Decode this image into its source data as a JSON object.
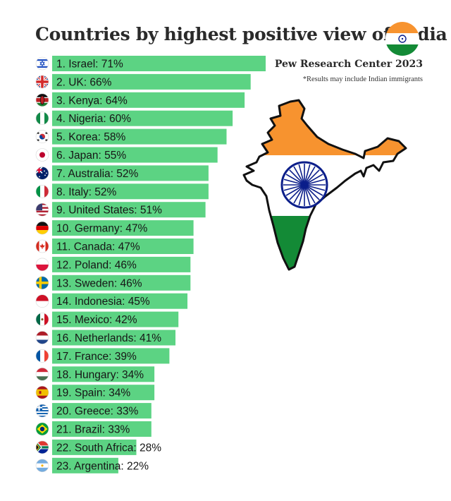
{
  "title": "Countries by highest positive view of India",
  "source": "Pew Research Center 2023",
  "note": "*Results may include Indian immigrants",
  "chart_data": {
    "type": "bar",
    "orientation": "horizontal",
    "unit": "%",
    "bar_color": "#5cd383",
    "rows": [
      {
        "label": "1. Israel: 71%",
        "country": "Israel",
        "value": 71,
        "flag": "israel"
      },
      {
        "label": "2. UK: 66%",
        "country": "UK",
        "value": 66,
        "flag": "uk"
      },
      {
        "label": "3. Kenya: 64%",
        "country": "Kenya",
        "value": 64,
        "flag": "kenya"
      },
      {
        "label": "4. Nigeria: 60%",
        "country": "Nigeria",
        "value": 60,
        "flag": "nigeria"
      },
      {
        "label": "5. Korea: 58%",
        "country": "Korea",
        "value": 58,
        "flag": "korea"
      },
      {
        "label": "6. Japan: 55%",
        "country": "Japan",
        "value": 55,
        "flag": "japan"
      },
      {
        "label": "7. Australia: 52%",
        "country": "Australia",
        "value": 52,
        "flag": "australia"
      },
      {
        "label": "8. Italy: 52%",
        "country": "Italy",
        "value": 52,
        "flag": "italy"
      },
      {
        "label": "9. United States: 51%",
        "country": "United States",
        "value": 51,
        "flag": "usa"
      },
      {
        "label": "10. Germany: 47%",
        "country": "Germany",
        "value": 47,
        "flag": "germany"
      },
      {
        "label": "11. Canada: 47%",
        "country": "Canada",
        "value": 47,
        "flag": "canada"
      },
      {
        "label": "12. Poland: 46%",
        "country": "Poland",
        "value": 46,
        "flag": "poland"
      },
      {
        "label": "13. Sweden: 46%",
        "country": "Sweden",
        "value": 46,
        "flag": "sweden"
      },
      {
        "label": "14. Indonesia: 45%",
        "country": "Indonesia",
        "value": 45,
        "flag": "indonesia"
      },
      {
        "label": "15. Mexico: 42%",
        "country": "Mexico",
        "value": 42,
        "flag": "mexico"
      },
      {
        "label": "16. Netherlands: 41%",
        "country": "Netherlands",
        "value": 41,
        "flag": "netherlands"
      },
      {
        "label": "17. France: 39%",
        "country": "France",
        "value": 39,
        "flag": "france"
      },
      {
        "label": "18. Hungary: 34%",
        "country": "Hungary",
        "value": 34,
        "flag": "hungary"
      },
      {
        "label": "19. Spain: 34%",
        "country": "Spain",
        "value": 34,
        "flag": "spain"
      },
      {
        "label": "20. Greece: 33%",
        "country": "Greece",
        "value": 33,
        "flag": "greece"
      },
      {
        "label": "21. Brazil: 33%",
        "country": "Brazil",
        "value": 33,
        "flag": "brazil"
      },
      {
        "label": "22. South Africa: 28%",
        "country": "South Africa",
        "value": 28,
        "flag": "south-africa"
      },
      {
        "label": "23. Argentina: 22%",
        "country": "Argentina",
        "value": 22,
        "flag": "argentina"
      }
    ]
  },
  "decorations": {
    "india_flag_colors": {
      "saffron": "#f7932f",
      "white": "#ffffff",
      "green": "#138a36",
      "chakra": "#0b1e8a"
    },
    "map_icon": "india-map-in-flag-colors",
    "badge_icon": "india-flag-circle"
  }
}
